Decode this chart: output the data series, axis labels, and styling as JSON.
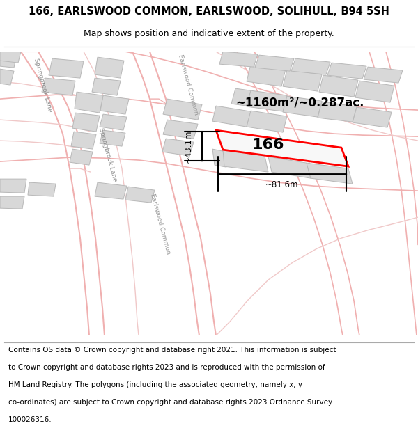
{
  "title": "166, EARLSWOOD COMMON, EARLSWOOD, SOLIHULL, B94 5SH",
  "subtitle": "Map shows position and indicative extent of the property.",
  "footer_lines": [
    "Contains OS data © Crown copyright and database right 2021. This information is subject",
    "to Crown copyright and database rights 2023 and is reproduced with the permission of",
    "HM Land Registry. The polygons (including the associated geometry, namely x, y",
    "co-ordinates) are subject to Crown copyright and database rights 2023 Ordnance Survey",
    "100026316."
  ],
  "bg_color": "#ffffff",
  "map_bg": "#ffffff",
  "road_color": "#f0b0b0",
  "road_color_light": "#f0c8c8",
  "building_fill": "#d8d8d8",
  "building_edge": "#b8b8b8",
  "plot_color": "#ff0000",
  "plot_label": "166",
  "area_text": "~1160m²/~0.287ac.",
  "dim_width": "~81.6m",
  "dim_height": "~43.1m",
  "road_label_sl": "Springbrook Lane",
  "road_label_ec1": "Earlswood Common",
  "road_label_ec2": "Earlswood Common",
  "road_label_sl2": "Springbrook Lane",
  "title_fontsize": 10.5,
  "subtitle_fontsize": 9,
  "footer_fontsize": 7.5
}
